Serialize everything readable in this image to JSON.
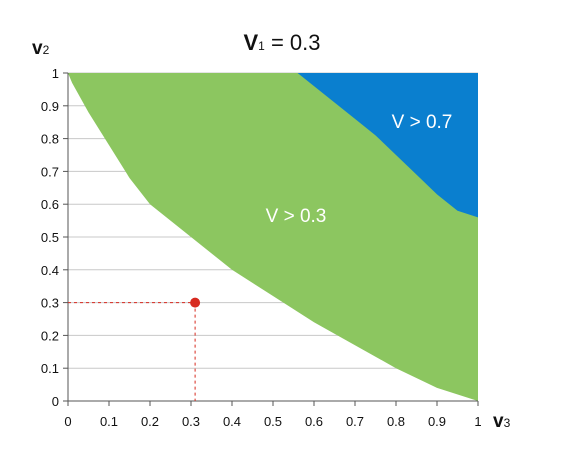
{
  "chart_data": {
    "type": "area",
    "title": {
      "var": "V",
      "sub": "1",
      "rest": " = 0.3"
    },
    "xlabel": {
      "var": "v",
      "sub": "3"
    },
    "ylabel": {
      "var": "v",
      "sub": "2"
    },
    "xlim": [
      0,
      1
    ],
    "ylim": [
      0,
      1
    ],
    "x_ticks": [
      "0",
      "0.1",
      "0.2",
      "0.3",
      "0.4",
      "0.5",
      "0.6",
      "0.7",
      "0.8",
      "0.9",
      "1"
    ],
    "y_ticks": [
      "0",
      "0.1",
      "0.2",
      "0.3",
      "0.4",
      "0.5",
      "0.6",
      "0.7",
      "0.8",
      "0.9",
      "1"
    ],
    "grid": "horizontal",
    "regions": [
      {
        "label": "V > 0.3",
        "color": "#8cc660",
        "boundary_x": [
          0.0,
          0.01,
          0.05,
          0.1,
          0.15,
          0.2,
          0.3,
          0.4,
          0.5,
          0.6,
          0.7,
          0.8,
          0.9,
          1.0
        ],
        "boundary_y": [
          1.0,
          0.97,
          0.88,
          0.78,
          0.68,
          0.6,
          0.5,
          0.4,
          0.32,
          0.24,
          0.17,
          0.1,
          0.04,
          0.0
        ]
      },
      {
        "label": "V > 0.7",
        "color": "#0a7fcf",
        "boundary_x": [
          0.56,
          0.6,
          0.65,
          0.7,
          0.75,
          0.8,
          0.85,
          0.9,
          0.95,
          1.0
        ],
        "boundary_y": [
          1.0,
          0.96,
          0.91,
          0.86,
          0.81,
          0.75,
          0.69,
          0.63,
          0.58,
          0.56
        ]
      }
    ],
    "marker": {
      "x": 0.31,
      "y": 0.3,
      "color": "#d72a1f"
    }
  }
}
